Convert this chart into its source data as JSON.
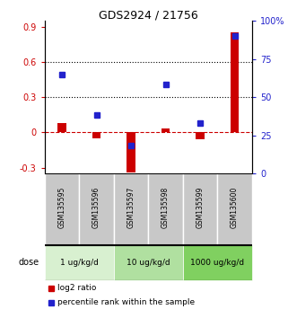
{
  "title": "GDS2924 / 21756",
  "samples": [
    "GSM135595",
    "GSM135596",
    "GSM135597",
    "GSM135598",
    "GSM135599",
    "GSM135600"
  ],
  "log2_ratio": [
    0.08,
    -0.05,
    -0.34,
    0.03,
    -0.06,
    0.85
  ],
  "percentile_rank": [
    65,
    38,
    18,
    58,
    33,
    90
  ],
  "dose_groups": [
    {
      "label": "1 ug/kg/d",
      "start": 0,
      "end": 2,
      "color": "#d8f0d0"
    },
    {
      "label": "10 ug/kg/d",
      "start": 2,
      "end": 4,
      "color": "#b0e0a0"
    },
    {
      "label": "1000 ug/kg/d",
      "start": 4,
      "end": 6,
      "color": "#80d060"
    }
  ],
  "bar_color_red": "#cc0000",
  "bar_color_blue": "#2222cc",
  "ylim_left": [
    -0.35,
    0.95
  ],
  "ylim_right": [
    0,
    100
  ],
  "yticks_left": [
    -0.3,
    0.0,
    0.3,
    0.6,
    0.9
  ],
  "yticks_right": [
    0,
    25,
    50,
    75,
    100
  ],
  "ytick_labels_left": [
    "-0.3",
    "0",
    "0.3",
    "0.6",
    "0.9"
  ],
  "ytick_labels_right": [
    "0",
    "25",
    "50",
    "75",
    "100%"
  ],
  "hlines": [
    0.3,
    0.6
  ],
  "zero_line_y": 0.0,
  "sample_box_color": "#c8c8c8",
  "legend_red_label": "log2 ratio",
  "legend_blue_label": "percentile rank within the sample"
}
